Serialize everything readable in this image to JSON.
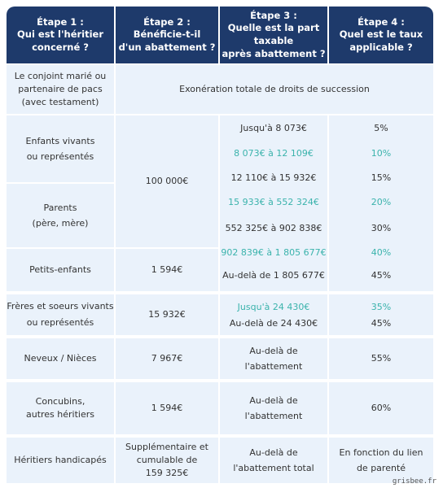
{
  "header": {
    "columns": [
      {
        "step": "Étape 1 :",
        "question": "Qui est l'héritier\nconcerné ?"
      },
      {
        "step": "Étape 2 :",
        "question": "Bénéficie-t-il\nd'un abattement ?"
      },
      {
        "step": "Étape 3 :",
        "question": "Quelle est la part taxable\naprès abattement ?"
      },
      {
        "step": "Étape 4 :",
        "question": "Quel est le taux\napplicable ?"
      }
    ]
  },
  "spouse": {
    "heir": "Le conjoint marié ou\npartenaire de pacs\n(avec testament)",
    "exemption": "Exonération totale de droits de succession"
  },
  "direct_line": {
    "heirs": [
      "Enfants vivants\nou représentés",
      "Parents\n(père, mère)",
      "Petits-enfants"
    ],
    "allowances": [
      "100 000€",
      "1 594€"
    ],
    "brackets": [
      {
        "range": "Jusqu'à 8 073€",
        "rate": "5%"
      },
      {
        "range": "8 073€ à 12 109€",
        "rate": "10%"
      },
      {
        "range": "12 110€ à 15 932€",
        "rate": "15%"
      },
      {
        "range": "15 933€ à 552 324€",
        "rate": "20%"
      },
      {
        "range": "552 325€ à 902 838€",
        "rate": "30%"
      },
      {
        "range": "902 839€ à 1 805 677€",
        "rate": "40%"
      },
      {
        "range": "Au-delà de 1 805 677€",
        "rate": "45%"
      }
    ]
  },
  "siblings": {
    "heir": "Frères et soeurs vivants\nou représentés",
    "allowance": "15 932€",
    "brackets": [
      {
        "range": "Jusqu'à 24 430€",
        "rate": "35%"
      },
      {
        "range": "Au-delà de 24 430€",
        "rate": "45%"
      }
    ]
  },
  "others": [
    {
      "heir": "Neveux / Nièces",
      "allowance": "7 967€",
      "taxable": "Au-delà de\nl'abattement",
      "rate": "55%"
    },
    {
      "heir": "Concubins,\nautres héritiers",
      "allowance": "1 594€",
      "taxable": "Au-delà de\nl'abattement",
      "rate": "60%"
    },
    {
      "heir": "Héritiers handicapés",
      "allowance": "Supplémentaire et\ncumulable de\n159 325€",
      "taxable": "Au-delà de\nl'abattement total",
      "rate": "En fonction du lien\nde parenté"
    }
  ],
  "watermark": "grisbee.fr"
}
